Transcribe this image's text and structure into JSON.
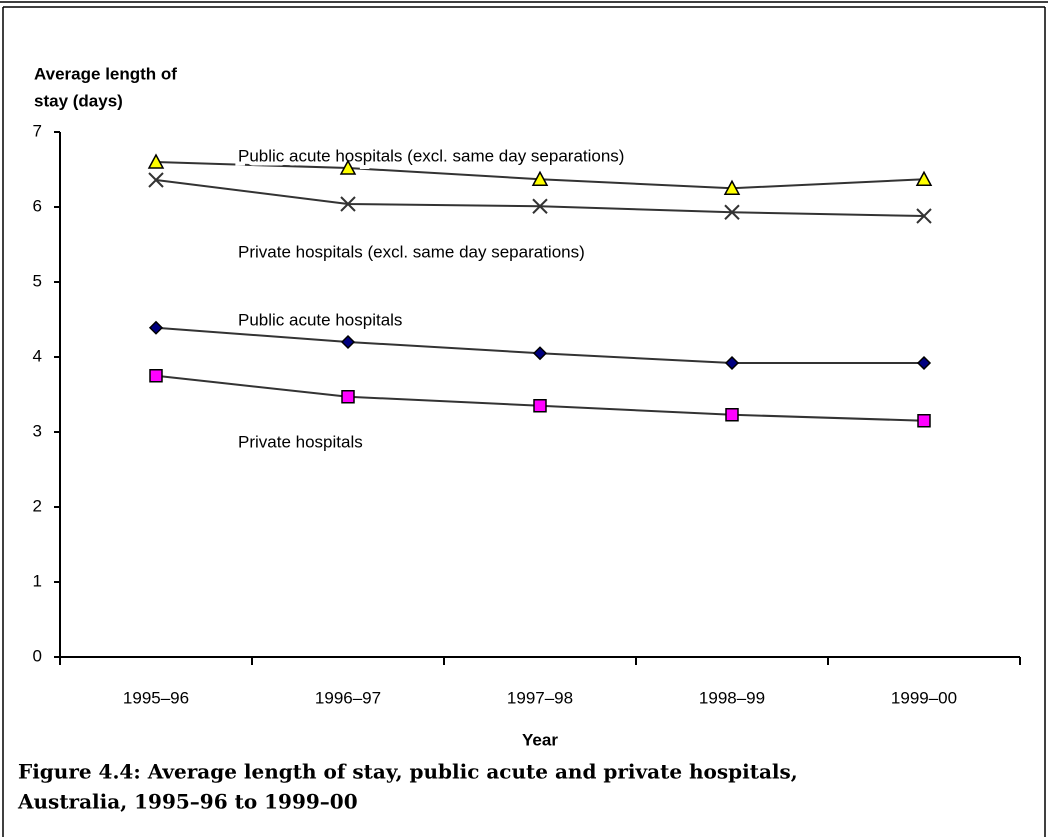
{
  "chart_data": {
    "type": "line",
    "ylabel": [
      "Average length of",
      "stay (days)"
    ],
    "xlabel": "Year",
    "caption": [
      "Figure 4.4: Average length of stay, public acute and private hospitals,",
      "Australia, 1995–96 to 1999–00"
    ],
    "categories": [
      "1995–96",
      "1996–97",
      "1997–98",
      "1998–99",
      "1999–00"
    ],
    "series": [
      {
        "name": "Public acute hospitals (excl. same day separations)",
        "color": "#ffff00",
        "marker": "triangle",
        "values": [
          6.6,
          6.52,
          6.37,
          6.25,
          6.37
        ]
      },
      {
        "name": "Private hospitals (excl. same day separations)",
        "color": "#333333",
        "marker": "cross",
        "values": [
          6.36,
          6.04,
          6.01,
          5.93,
          5.88
        ]
      },
      {
        "name": "Public acute hospitals",
        "color": "#000080",
        "marker": "diamond",
        "values": [
          4.39,
          4.2,
          4.05,
          3.92,
          3.92
        ]
      },
      {
        "name": "Private hospitals",
        "color": "#ff00ff",
        "marker": "square",
        "values": [
          3.75,
          3.47,
          3.35,
          3.23,
          3.15
        ]
      }
    ],
    "ylim": [
      0,
      7
    ],
    "yticks": [
      0,
      1,
      2,
      3,
      4,
      5,
      6,
      7
    ],
    "grid": false
  }
}
